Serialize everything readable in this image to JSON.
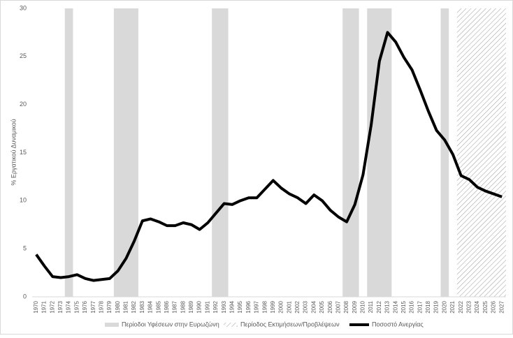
{
  "chart_data": {
    "type": "line",
    "y_label": "% Εργατικού Δυναμικού",
    "x": [
      1970,
      1971,
      1972,
      1973,
      1974,
      1975,
      1976,
      1977,
      1978,
      1979,
      1980,
      1981,
      1982,
      1983,
      1984,
      1985,
      1986,
      1987,
      1988,
      1989,
      1990,
      1991,
      1992,
      1993,
      1994,
      1995,
      1996,
      1997,
      1998,
      1999,
      2000,
      2001,
      2002,
      2003,
      2004,
      2005,
      2006,
      2007,
      2008,
      2009,
      2010,
      2011,
      2012,
      2013,
      2014,
      2015,
      2016,
      2017,
      2018,
      2019,
      2020,
      2021,
      2022,
      2023,
      2024,
      2025,
      2026,
      2027
    ],
    "series": [
      {
        "name": "Ποσοστό Ανεργίας",
        "color": "#000000",
        "values": [
          4.4,
          3.2,
          2.1,
          2.0,
          2.1,
          2.3,
          1.9,
          1.7,
          1.8,
          1.9,
          2.7,
          4.0,
          5.8,
          7.9,
          8.1,
          7.8,
          7.4,
          7.4,
          7.7,
          7.5,
          7.0,
          7.7,
          8.7,
          9.7,
          9.6,
          10.0,
          10.3,
          10.3,
          11.2,
          12.1,
          11.3,
          10.7,
          10.3,
          9.7,
          10.6,
          10.0,
          9.0,
          8.3,
          7.8,
          9.6,
          12.7,
          17.9,
          24.5,
          27.5,
          26.5,
          24.9,
          23.6,
          21.5,
          19.3,
          17.3,
          16.3,
          14.8,
          12.6,
          12.2,
          11.4,
          11.0,
          10.7,
          10.4
        ]
      }
    ],
    "recessions": {
      "name": "Περίοδοι Υφέσεων στην Ευρωζώνη",
      "color": "#d9d9d9",
      "periods": [
        [
          1974,
          1974
        ],
        [
          1980,
          1982
        ],
        [
          1992,
          1993
        ],
        [
          2008,
          2009
        ],
        [
          2011,
          2013
        ],
        [
          2020,
          2020
        ]
      ]
    },
    "forecast": {
      "name": "Περίοδος Εκτιμήσεων/Προβλέψεων",
      "period": [
        2022,
        2027
      ]
    },
    "xlim": [
      1969.5,
      2027.5
    ],
    "ylim": [
      0,
      30
    ],
    "yticks": [
      0,
      5,
      10,
      15,
      20,
      25,
      30
    ]
  }
}
